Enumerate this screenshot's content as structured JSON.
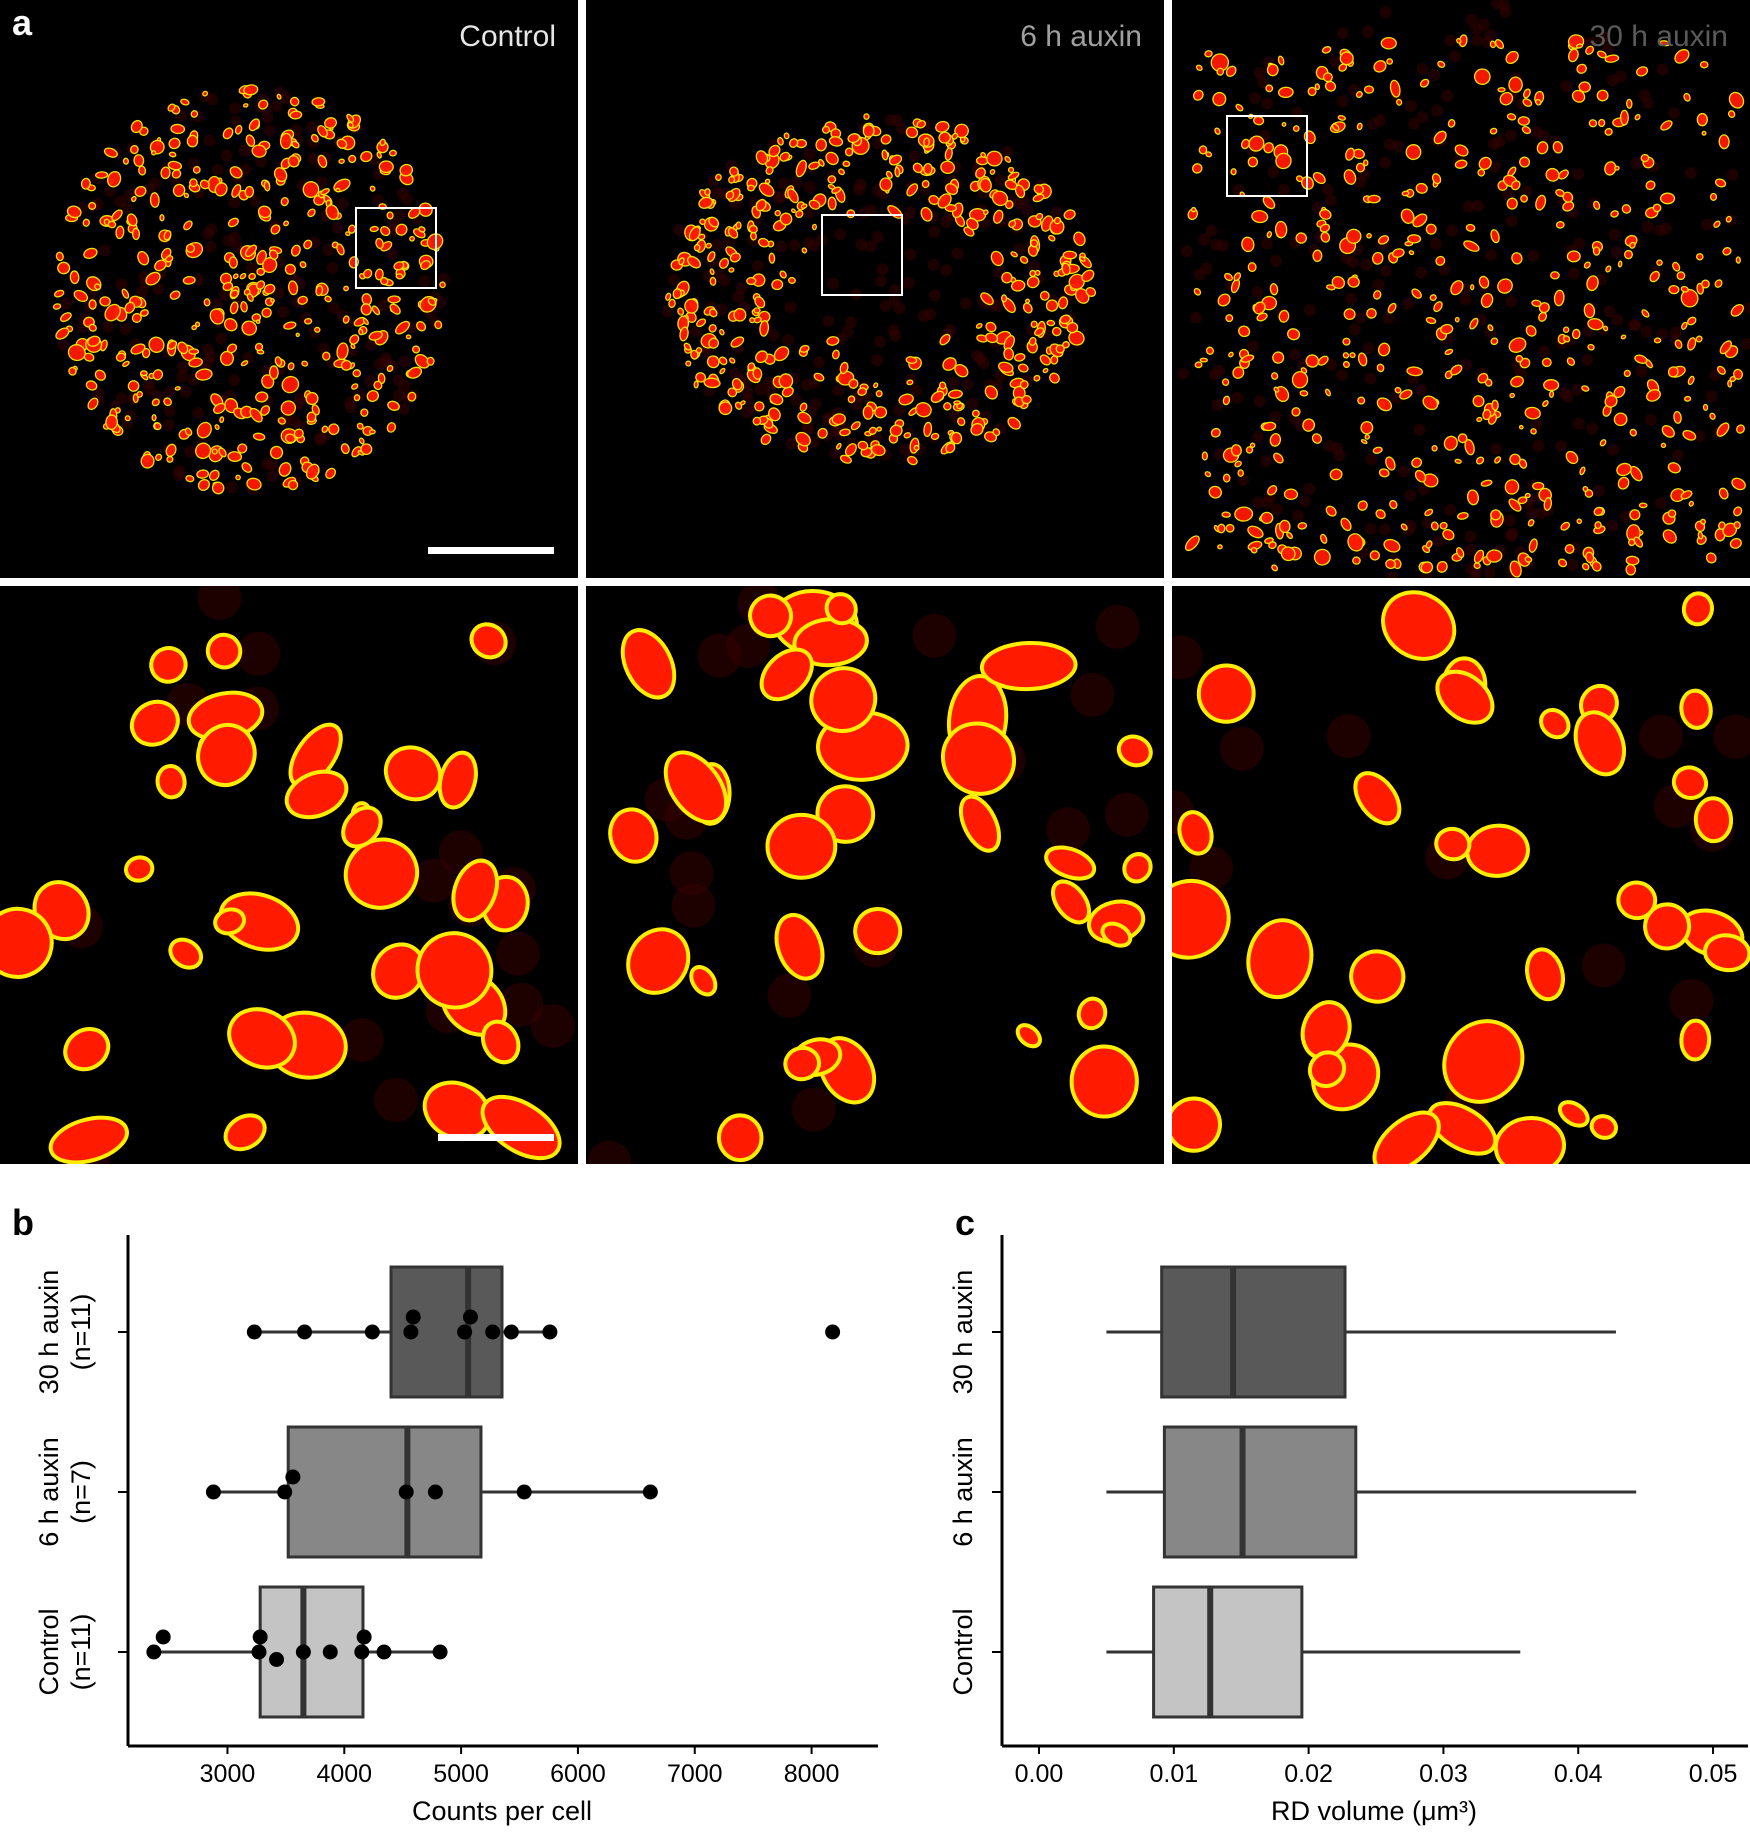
{
  "panel_labels": {
    "a": "a",
    "b": "b",
    "c": "c"
  },
  "micrographs": {
    "conditions": [
      "Control",
      "6 h auxin",
      "30 h auxin"
    ],
    "label_colors": [
      "#e6e6e6",
      "#a0a0a0",
      "#5a5a5a"
    ],
    "colors": {
      "spot_outline": "#ffee00",
      "spot_fill": "#ff1a00",
      "background_glow": "#3a0000"
    }
  },
  "chart_data": [
    {
      "panel": "b",
      "type": "box",
      "orientation": "horizontal",
      "categories": [
        "Control",
        "6 h auxin",
        "30 h auxin"
      ],
      "category_sublabels": [
        "(n=11)",
        "(n=7)",
        "(n=11)"
      ],
      "xlabel": "Counts per cell",
      "xticks": [
        3000,
        4000,
        5000,
        6000,
        7000,
        8000
      ],
      "xlim": [
        2200,
        8500
      ],
      "box_colors": [
        "#c4c4c4",
        "#878787",
        "#595959"
      ],
      "boxes": [
        {
          "name": "Control",
          "q1": 3280,
          "median": 3650,
          "q3": 4160,
          "whisker_low": 2370,
          "whisker_high": 4800
        },
        {
          "name": "6 h auxin",
          "q1": 3520,
          "median": 4540,
          "q3": 5170,
          "whisker_low": 2880,
          "whisker_high": 6620
        },
        {
          "name": "30 h auxin",
          "q1": 4400,
          "median": 5060,
          "q3": 5350,
          "whisker_low": 3230,
          "whisker_high": 5780
        }
      ],
      "points": [
        {
          "category": "Control",
          "values": [
            2370,
            2450,
            3280,
            3270,
            3420,
            3650,
            3880,
            4150,
            4170,
            4340,
            4820
          ],
          "jitter": [
            0,
            0.3,
            0.3,
            0,
            -0.15,
            0,
            0,
            0,
            0.3,
            0,
            0
          ]
        },
        {
          "category": "6 h auxin",
          "values": [
            2880,
            3490,
            3560,
            4530,
            4780,
            5540,
            6620
          ],
          "jitter": [
            0,
            0,
            0.3,
            0,
            0,
            0,
            0
          ]
        },
        {
          "category": "30 h auxin",
          "values": [
            3230,
            3660,
            4240,
            4570,
            4590,
            5030,
            5080,
            5270,
            5430,
            5760,
            8180
          ],
          "jitter": [
            0,
            0,
            0,
            0,
            0.3,
            0,
            0.3,
            0,
            0,
            0,
            0
          ]
        }
      ]
    },
    {
      "panel": "c",
      "type": "box",
      "orientation": "horizontal",
      "categories": [
        "Control",
        "6 h auxin",
        "30 h auxin"
      ],
      "xlabel": "RD volume (μm³)",
      "xticks": [
        0.0,
        0.01,
        0.02,
        0.03,
        0.04,
        0.05
      ],
      "xtick_labels": [
        "0.00",
        "0.01",
        "0.02",
        "0.03",
        "0.04",
        "0.05"
      ],
      "xlim": [
        -0.0023,
        0.052
      ],
      "box_colors": [
        "#c4c4c4",
        "#878787",
        "#595959"
      ],
      "boxes": [
        {
          "name": "Control",
          "q1": 0.0085,
          "median": 0.0127,
          "q3": 0.0195,
          "whisker_low": 0.005,
          "whisker_high": 0.0357
        },
        {
          "name": "6 h auxin",
          "q1": 0.0093,
          "median": 0.0151,
          "q3": 0.0235,
          "whisker_low": 0.005,
          "whisker_high": 0.0443
        },
        {
          "name": "30 h auxin",
          "q1": 0.0091,
          "median": 0.0144,
          "q3": 0.0227,
          "whisker_low": 0.005,
          "whisker_high": 0.0428
        }
      ]
    }
  ]
}
